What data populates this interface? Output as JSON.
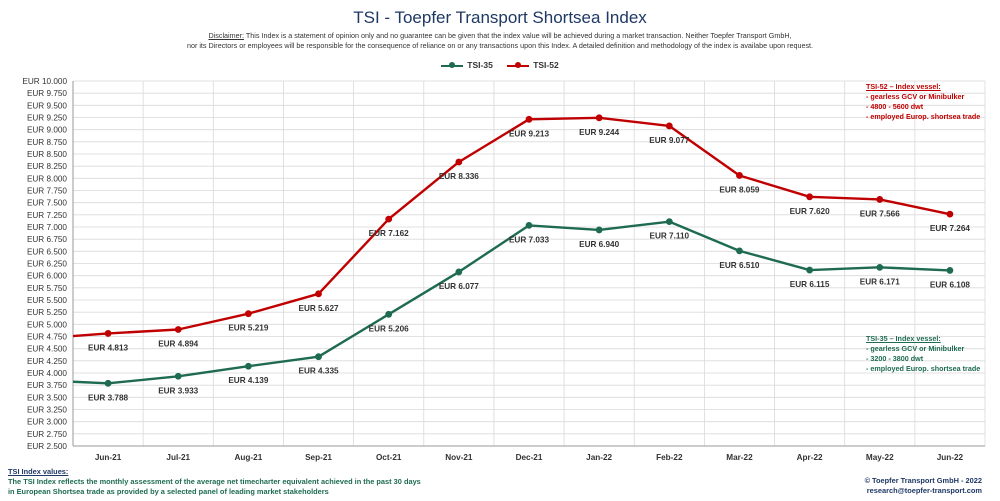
{
  "title": "TSI - Toepfer Transport Shortsea Index",
  "disclaimer": {
    "label": "Disclaimer:",
    "line1": " This Index is a statement of opinion only and no guarantee can be given that the index value will be achieved during a market transaction. Neither Toepfer Transport GmbH,",
    "line2": "nor its Directors or employees will be responsible for the consequence of reliance on or any transactions upon this Index.  A detailed definition and methodology of the index is availabe upon request."
  },
  "notes": {
    "tsi52": {
      "header": "TSI-52 – Index vessel:",
      "lines": [
        "- gearless GCV or Minibulker",
        "- 4800 - 5600 dwt",
        "- employed Europ. shortsea trade"
      ]
    },
    "tsi35": {
      "header": "TSI-35 – Index vessel:",
      "lines": [
        "- gearless GCV or Minibulker",
        "- 3200 - 3800 dwt",
        "- employed Europ. shortsea trade"
      ]
    }
  },
  "footer": {
    "header": "TSI Index values:",
    "line1": "The TSI Index reflects the monthly assessment of the average net timecharter equivalent achieved in the past 30 days",
    "line2": "in European Shortsea trade as provided by a selected panel of leading market stakeholders"
  },
  "copyright": {
    "line1": "© Toepfer Transport GmbH - 2022",
    "line2": "research@toepfer-transport.com"
  },
  "colors": {
    "tsi35": "#1e6b52",
    "tsi52": "#c00000",
    "grid": "#d9d9d9"
  },
  "chart_data": {
    "type": "line",
    "categories": [
      "Jun-21",
      "Jul-21",
      "Aug-21",
      "Sep-21",
      "Oct-21",
      "Nov-21",
      "Dec-21",
      "Jan-22",
      "Feb-22",
      "Mar-22",
      "Apr-22",
      "May-22",
      "Jun-22"
    ],
    "series": [
      {
        "name": "TSI-35",
        "values": [
          3788,
          3933,
          4139,
          4335,
          5206,
          6077,
          7033,
          6940,
          7110,
          6510,
          6115,
          6171,
          6108
        ],
        "labels": [
          "EUR 3.788",
          "EUR 3.933",
          "EUR 4.139",
          "EUR 4.335",
          "EUR 5.206",
          "EUR 6.077",
          "EUR 7.033",
          "EUR 6.940",
          "EUR 7.110",
          "EUR 6.510",
          "EUR 6.115",
          "EUR 6.171",
          "EUR 6.108"
        ],
        "start_value": 3820
      },
      {
        "name": "TSI-52",
        "values": [
          4813,
          4894,
          5219,
          5627,
          7162,
          8336,
          9213,
          9244,
          9077,
          8059,
          7620,
          7566,
          7264
        ],
        "labels": [
          "EUR 4.813",
          "EUR 4.894",
          "EUR 5.219",
          "EUR 5.627",
          "EUR 7.162",
          "EUR 8.336",
          "EUR 9.213",
          "EUR 9.244",
          "EUR 9.077",
          "EUR 8.059",
          "EUR 7.620",
          "EUR 7.566",
          "EUR 7.264"
        ],
        "start_value": 4760
      }
    ],
    "ylim": [
      2500,
      10000
    ],
    "y_ticks": [
      "EUR 2.500",
      "EUR 2.750",
      "EUR 3.000",
      "EUR 3.250",
      "EUR 3.500",
      "EUR 3.750",
      "EUR 4.000",
      "EUR 4.250",
      "EUR 4.500",
      "EUR 4.750",
      "EUR 5.000",
      "EUR 5.250",
      "EUR 5.500",
      "EUR 5.750",
      "EUR 6.000",
      "EUR 6.250",
      "EUR 6.500",
      "EUR 6.750",
      "EUR 7.000",
      "EUR 7.250",
      "EUR 7.500",
      "EUR 7.750",
      "EUR 8.000",
      "EUR 8.250",
      "EUR 8.500",
      "EUR 8.750",
      "EUR 9.000",
      "EUR 9.250",
      "EUR 9.500",
      "EUR 9.750",
      "EUR 10.000"
    ],
    "grid": true,
    "legend": "top-center"
  }
}
